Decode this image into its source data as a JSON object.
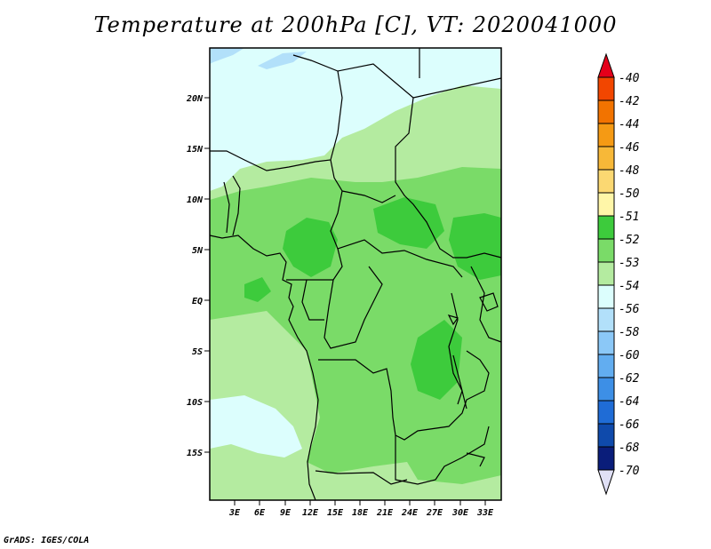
{
  "title": "Temperature at 200hPa [C], VT: 2020041000",
  "credit": "GrADS: IGES/COLA",
  "lat_labels": [
    "20N",
    "15N",
    "10N",
    "5N",
    "EQ",
    "5S",
    "10S",
    "15S"
  ],
  "lon_labels": [
    "3E",
    "6E",
    "9E",
    "12E",
    "15E",
    "18E",
    "21E",
    "24E",
    "27E",
    "30E",
    "33E"
  ],
  "colorbar": {
    "labels": [
      "-40",
      "-42",
      "-44",
      "-46",
      "-48",
      "-50",
      "-51",
      "-52",
      "-53",
      "-54",
      "-56",
      "-58",
      "-60",
      "-62",
      "-64",
      "-66",
      "-68",
      "-70"
    ],
    "colors": [
      "#e4001a",
      "#f24600",
      "#f27300",
      "#f59a14",
      "#f7b838",
      "#fbd872",
      "#fff6a8",
      "#3dcb3c",
      "#7adb68",
      "#b4eba0",
      "#dcfefd",
      "#b2e0fa",
      "#8bc8f7",
      "#62adf0",
      "#3d8fe6",
      "#1f6cd6",
      "#0f4aab",
      "#0a1d7a",
      "#e0e0f6"
    ]
  },
  "legend_colors": {
    "c_m51": "#3dcb3c",
    "c_m52": "#7adb68",
    "c_m53": "#b4eba0",
    "c_m54": "#dcfefd",
    "c_m56": "#b2e0fa"
  }
}
